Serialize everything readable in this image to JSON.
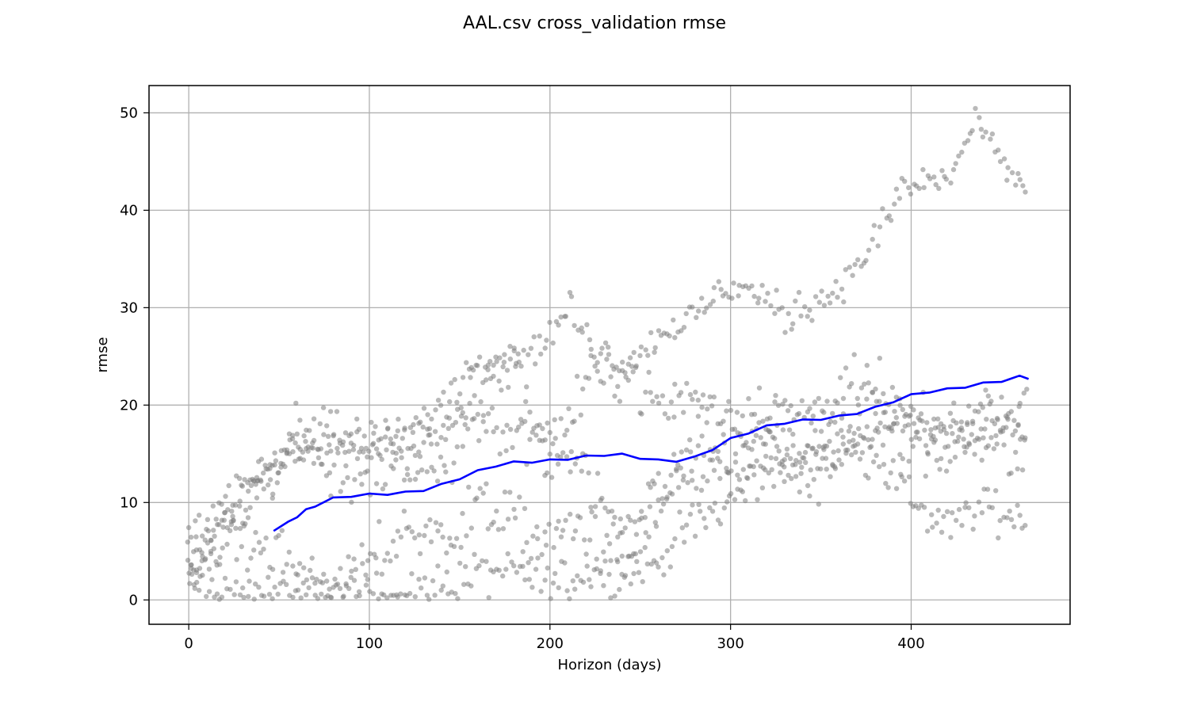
{
  "chart_data": {
    "type": "scatter",
    "title": "AAL.csv cross_validation rmse",
    "xlabel": "Horizon (days)",
    "ylabel": "rmse",
    "xlim": [
      -22,
      488
    ],
    "ylim": [
      -2.5,
      52.8
    ],
    "xticks": [
      0,
      100,
      200,
      300,
      400
    ],
    "yticks": [
      0,
      10,
      20,
      30,
      40,
      50
    ],
    "grid": true,
    "colors": {
      "points": "#808080",
      "line": "#0000ff",
      "grid": "#b0b0b0",
      "axes": "#000000"
    },
    "series": [
      {
        "kind": "points",
        "bands": [
          {
            "x": [
              0,
              20,
              40,
              60,
              80,
              100,
              120,
              140,
              160,
              180,
              200,
              220,
              240,
              260,
              280,
              300,
              320,
              340,
              360,
              380,
              400,
              420,
              440,
              465
            ],
            "y": [
              1.5,
              0.8,
              0.5,
              1.0,
              1.2,
              1.0,
              0.3,
              1.5,
              2.5,
              3.0,
              1.5,
              3.0,
              2.5,
              4.0,
              8.0,
              10.0,
              14.0,
              12.0,
              15.0,
              15.0,
              10.0,
              7.0,
              10.0,
              8.0
            ],
            "spread": 1.2
          },
          {
            "x": [
              0,
              20,
              40,
              60,
              80,
              100,
              120,
              140,
              160,
              180,
              200,
              220,
              240,
              260,
              280,
              300,
              320,
              340,
              360,
              380,
              400,
              420,
              440,
              465
            ],
            "y": [
              3.0,
              6.0,
              6.0,
              3.0,
              1.0,
              3.5,
              7.0,
              6.0,
              10.0,
              8.0,
              6.0,
              8.0,
              4.0,
              10.0,
              13.0,
              15.0,
              16.0,
              14.0,
              17.0,
              16.0,
              19.0,
              17.0,
              16.0,
              15.0
            ],
            "spread": 1.6
          },
          {
            "x": [
              0,
              20,
              40,
              60,
              80,
              100,
              120,
              140,
              160,
              180,
              200,
              220,
              240,
              260,
              280,
              300,
              320,
              340,
              360,
              380,
              400,
              420,
              440,
              465
            ],
            "y": [
              7.0,
              10.0,
              12.0,
              17.0,
              12.5,
              13.0,
              16.0,
              13.0,
              19.0,
              16.0,
              17.0,
              13.0,
              7.0,
              11.0,
              15.0,
              14.0,
              15.0,
              16.0,
              15.0,
              20.0,
              17.0,
              15.0,
              19.0,
              16.0
            ],
            "spread": 1.6
          },
          {
            "x": [
              0,
              20,
              40,
              60,
              80,
              100,
              120,
              140,
              160,
              180,
              200,
              220,
              240,
              260,
              280,
              300,
              320,
              340,
              360,
              380,
              400,
              420,
              440,
              465
            ],
            "y": [
              2.0,
              6.0,
              12.0,
              16.0,
              18.0,
              16.0,
              14.0,
              17.0,
              22.0,
              24.0,
              14.0,
              22.0,
              24.0,
              20.0,
              21.0,
              19.0,
              20.0,
              19.0,
              21.0,
              22.0,
              18.0,
              17.0,
              19.0,
              20.0
            ],
            "spread": 1.4
          },
          {
            "x": [
              0,
              20,
              40,
              60,
              80,
              100,
              120,
              140,
              160,
              180,
              200,
              210,
              220,
              240,
              260,
              280,
              295,
              310,
              330,
              350,
              365,
              380,
              395,
              410,
              420,
              435,
              450,
              465
            ],
            "y": [
              3.0,
              9.0,
              13.0,
              15.0,
              17.0,
              15.0,
              17.0,
              20.0,
              25.0,
              25.0,
              27.0,
              30.0,
              27.0,
              24.0,
              27.0,
              29.0,
              32.0,
              32.0,
              29.0,
              31.0,
              33.0,
              37.0,
              42.0,
              43.0,
              43.0,
              49.0,
              45.0,
              42.0
            ],
            "spread": 0.9
          }
        ]
      },
      {
        "kind": "line",
        "x": [
          47,
          55,
          60,
          65,
          70,
          80,
          90,
          100,
          110,
          120,
          130,
          140,
          150,
          160,
          170,
          180,
          190,
          200,
          210,
          220,
          230,
          240,
          250,
          260,
          270,
          280,
          290,
          300,
          310,
          320,
          330,
          340,
          350,
          360,
          370,
          380,
          390,
          400,
          410,
          420,
          430,
          440,
          450,
          460,
          465
        ],
        "y": [
          7.2,
          7.9,
          8.6,
          9.2,
          9.7,
          10.4,
          10.7,
          10.8,
          10.9,
          11.0,
          11.3,
          11.8,
          12.5,
          13.2,
          13.8,
          14.1,
          14.2,
          14.3,
          14.5,
          14.7,
          14.9,
          14.9,
          14.6,
          14.3,
          14.3,
          14.6,
          15.5,
          16.5,
          17.2,
          17.8,
          18.2,
          18.4,
          18.6,
          18.8,
          19.2,
          19.7,
          20.4,
          21.0,
          21.4,
          21.6,
          21.9,
          22.2,
          22.5,
          22.9,
          22.8
        ]
      }
    ]
  }
}
